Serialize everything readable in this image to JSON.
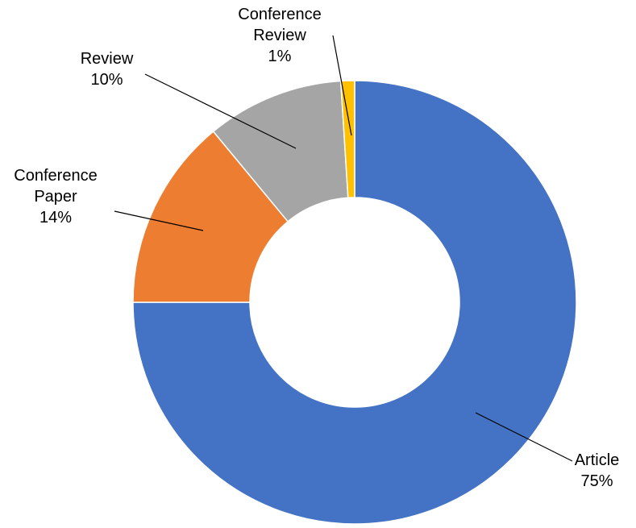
{
  "chart_data": {
    "type": "pie",
    "subtype": "doughnut",
    "title": "",
    "categories": [
      "Article",
      "Conference Paper",
      "Review",
      "Conference Review"
    ],
    "values": [
      75,
      14,
      10,
      1
    ],
    "unit": "%",
    "colors": [
      "#4472C4",
      "#ED7D31",
      "#A5A5A5",
      "#FFC000"
    ],
    "start_angle_deg": 0,
    "direction": "clockwise",
    "hole_ratio": 0.47,
    "legend": "none",
    "data_labels": "category name and percentage outside slices with leader lines"
  },
  "labels": {
    "article": {
      "name": "Article",
      "value": "75%"
    },
    "conference_paper": {
      "name": "Conference Paper",
      "value": "14%"
    },
    "review": {
      "name": "Review",
      "value": "10%"
    },
    "conference_review": {
      "name": "Conference Review",
      "value": "1%"
    }
  }
}
